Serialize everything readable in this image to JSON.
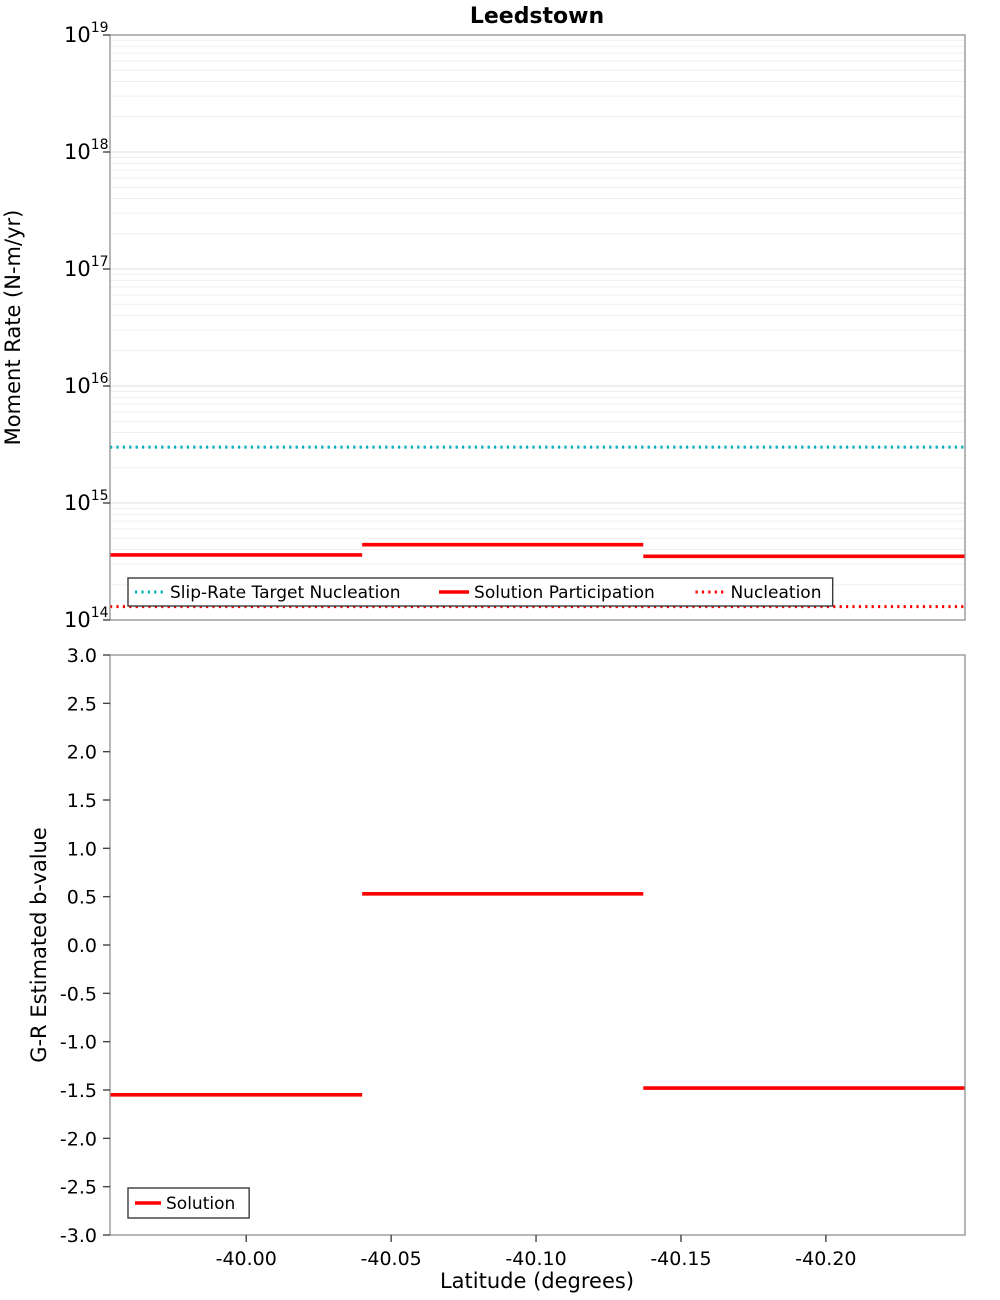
{
  "figure": {
    "title": "Leedstown",
    "xlabel": "Latitude (degrees)"
  },
  "chart_data": [
    {
      "type": "line",
      "title": "Leedstown",
      "ylabel": "Moment Rate (N-m/yr)",
      "yscale": "log",
      "ylim_exponents": [
        14,
        19
      ],
      "ytick_exponents": [
        14,
        15,
        16,
        17,
        18,
        19
      ],
      "x_range": [
        -39.953,
        -40.248
      ],
      "xticks": [
        -40.0,
        -40.05,
        -40.1,
        -40.15,
        -40.2
      ],
      "grid": "horizontal-log",
      "legend_position": "bottom-inside",
      "series": [
        {
          "name": "Slip-Rate Target Nucleation",
          "color": "#00b0b5",
          "line_style": "dotted",
          "segments": [
            {
              "x": [
                -39.953,
                -40.248
              ],
              "y": 3000000000000000.0
            }
          ]
        },
        {
          "name": "Solution Participation",
          "color": "#ff0000",
          "line_style": "solid",
          "segments": [
            {
              "x": [
                -39.953,
                -40.04
              ],
              "y": 360000000000000.0
            },
            {
              "x": [
                -40.04,
                -40.137
              ],
              "y": 440000000000000.0
            },
            {
              "x": [
                -40.137,
                -40.248
              ],
              "y": 350000000000000.0
            }
          ]
        },
        {
          "name": "Nucleation",
          "color": "#ff0000",
          "line_style": "dotted",
          "segments": [
            {
              "x": [
                -39.953,
                -40.248
              ],
              "y": 130000000000000.0
            }
          ]
        }
      ]
    },
    {
      "type": "line",
      "ylabel": "G-R Estimated b-value",
      "xlabel": "Latitude (degrees)",
      "yscale": "linear",
      "ylim": [
        -3.0,
        3.0
      ],
      "ytick_step": 0.5,
      "x_range": [
        -39.953,
        -40.248
      ],
      "xticks": [
        -40.0,
        -40.05,
        -40.1,
        -40.15,
        -40.2
      ],
      "grid": "none",
      "legend_position": "bottom-left-inside",
      "series": [
        {
          "name": "Solution",
          "color": "#ff0000",
          "line_style": "solid",
          "segments": [
            {
              "x": [
                -39.953,
                -40.04
              ],
              "y": -1.55
            },
            {
              "x": [
                -40.04,
                -40.137
              ],
              "y": 0.53
            },
            {
              "x": [
                -40.137,
                -40.248
              ],
              "y": -1.48
            }
          ]
        }
      ]
    }
  ]
}
